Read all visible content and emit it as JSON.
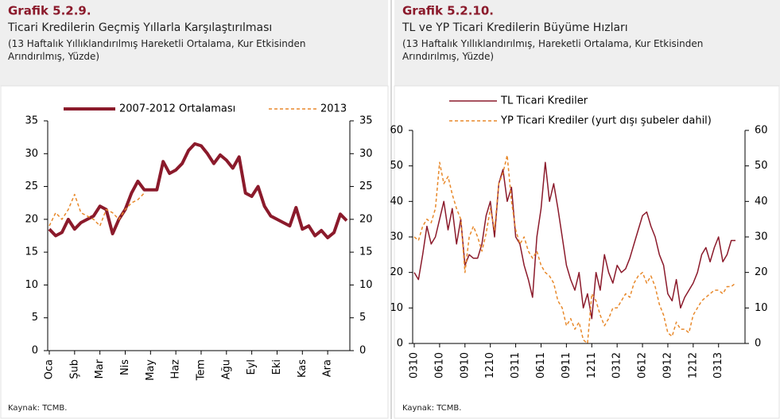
{
  "chart_data": [
    {
      "type": "line",
      "label": "Grafik 5.2.9.",
      "title": "Ticari Kredilerin Geçmiş Yıllarla Karşılaştırılması",
      "subtitle": "(13 Haftalık Yıllıklandırılmış Hareketli Ortalama, Kur Etkisinden Arındırılmış, Yüzde)",
      "source": "Kaynak: TCMB.",
      "categories": [
        "Oca",
        null,
        null,
        null,
        "Şub",
        null,
        null,
        null,
        "Mar",
        null,
        null,
        null,
        "Nis",
        null,
        null,
        null,
        "May",
        null,
        null,
        null,
        "Haz",
        null,
        null,
        null,
        "Tem",
        null,
        null,
        null,
        "Ağu",
        null,
        null,
        null,
        "Eyl",
        null,
        null,
        null,
        "Eki",
        null,
        null,
        null,
        "Kas",
        null,
        null,
        null,
        "Ara",
        null,
        null,
        null
      ],
      "series": [
        {
          "name": "2007-2012 Ortalaması",
          "color": "#8b1a2b",
          "linewidth": 4,
          "line_style": "solid",
          "values": [
            18.5,
            17.5,
            18,
            20,
            18.5,
            19.5,
            20,
            20.5,
            22,
            21.5,
            17.8,
            20,
            21.5,
            24,
            25.8,
            24.5,
            24.5,
            24.5,
            28.8,
            27,
            27.5,
            28.5,
            30.5,
            31.5,
            31.2,
            30,
            28.5,
            29.8,
            29,
            27.8,
            29.5,
            24,
            23.5,
            25,
            22,
            20.5,
            20,
            19.5,
            19,
            21.8,
            18.5,
            19,
            17.5,
            18.3,
            17.2,
            18,
            20.8,
            19.8
          ]
        },
        {
          "name": "2013",
          "color": "#e8892b",
          "linewidth": 1.5,
          "line_style": "dashed",
          "values": [
            19,
            21,
            20,
            21.5,
            23.8,
            21,
            20.5,
            20,
            19,
            21.5,
            21,
            20,
            21.5,
            22.5,
            23,
            24,
            null,
            null,
            null,
            null,
            null,
            null,
            null,
            null,
            null,
            null,
            null,
            null,
            null,
            null,
            null,
            null,
            null,
            null,
            null,
            null,
            null,
            null,
            null,
            null,
            null,
            null,
            null,
            null,
            null,
            null,
            null,
            null
          ]
        }
      ],
      "ylim": [
        0,
        35
      ],
      "yticks": [
        0,
        5,
        10,
        15,
        20,
        25,
        30,
        35
      ],
      "y2lim": [
        0,
        35
      ],
      "y2ticks": [
        0,
        5,
        10,
        15,
        20,
        25,
        30,
        35
      ],
      "legend": "top"
    },
    {
      "type": "line",
      "label": "Grafik 5.2.10.",
      "title": "TL ve YP Ticari Kredilerin Büyüme Hızları",
      "subtitle": "(13 Haftalık Yıllıklandırılmış, Hareketli Ortalama, Kur Etkisinden Arındırılmış, Yüzde)",
      "source": "Kaynak: TCMB.",
      "categories": [
        "0310",
        null,
        null,
        null,
        null,
        null,
        "0610",
        null,
        null,
        null,
        null,
        null,
        "0910",
        null,
        null,
        null,
        null,
        null,
        "1210",
        null,
        null,
        null,
        null,
        null,
        "0311",
        null,
        null,
        null,
        null,
        null,
        "0611",
        null,
        null,
        null,
        null,
        null,
        "0911",
        null,
        null,
        null,
        null,
        null,
        "1211",
        null,
        null,
        null,
        null,
        null,
        "0312",
        null,
        null,
        null,
        null,
        null,
        "0612",
        null,
        null,
        null,
        null,
        null,
        "0912",
        null,
        null,
        null,
        null,
        null,
        "1212",
        null,
        null,
        null,
        null,
        null,
        "0313",
        null,
        null,
        null,
        null
      ],
      "series": [
        {
          "name": "TL Ticari Krediler",
          "color": "#8b1a2b",
          "linewidth": 1.5,
          "line_style": "solid",
          "values": [
            20,
            18,
            25,
            33,
            28,
            30,
            35,
            40,
            32,
            38,
            28,
            35,
            22,
            25,
            24,
            24,
            28,
            36,
            40,
            30,
            45,
            49,
            40,
            44,
            30,
            28,
            22,
            18,
            13,
            30,
            38,
            51,
            40,
            45,
            38,
            30,
            22,
            18,
            15,
            20,
            10,
            14,
            7,
            20,
            15,
            25,
            20,
            17,
            22,
            20,
            21,
            24,
            28,
            32,
            36,
            37,
            33,
            30,
            25,
            22,
            14,
            12,
            18,
            10,
            13,
            15,
            17,
            20,
            25,
            27,
            23,
            27,
            30,
            23,
            25,
            29,
            29
          ]
        },
        {
          "name": "YP Ticari Krediler (yurt dışı şubeler dahil)",
          "color": "#e8892b",
          "linewidth": 1.5,
          "line_style": "dashed",
          "values": [
            30,
            29,
            33,
            35,
            34,
            38,
            51,
            45,
            47,
            42,
            38,
            35,
            20,
            30,
            33,
            30,
            26,
            31,
            38,
            32,
            45,
            48,
            53,
            40,
            32,
            28,
            30,
            26,
            24,
            26,
            22,
            20,
            19,
            17,
            12,
            10,
            5,
            7,
            4,
            6,
            1,
            0,
            14,
            12,
            8,
            5,
            7,
            10,
            10,
            12,
            14,
            13,
            17,
            19,
            20,
            17,
            19,
            16,
            11,
            8,
            3,
            2,
            6,
            4,
            4,
            3,
            8,
            10,
            12,
            13,
            14,
            15,
            15,
            14,
            16,
            16,
            17
          ]
        }
      ],
      "ylim": [
        0,
        60
      ],
      "yticks": [
        0,
        10,
        20,
        30,
        40,
        50,
        60
      ],
      "y2lim": [
        0,
        60
      ],
      "y2ticks": [
        0,
        10,
        20,
        30,
        40,
        50,
        60
      ],
      "legend": "top-left"
    }
  ]
}
